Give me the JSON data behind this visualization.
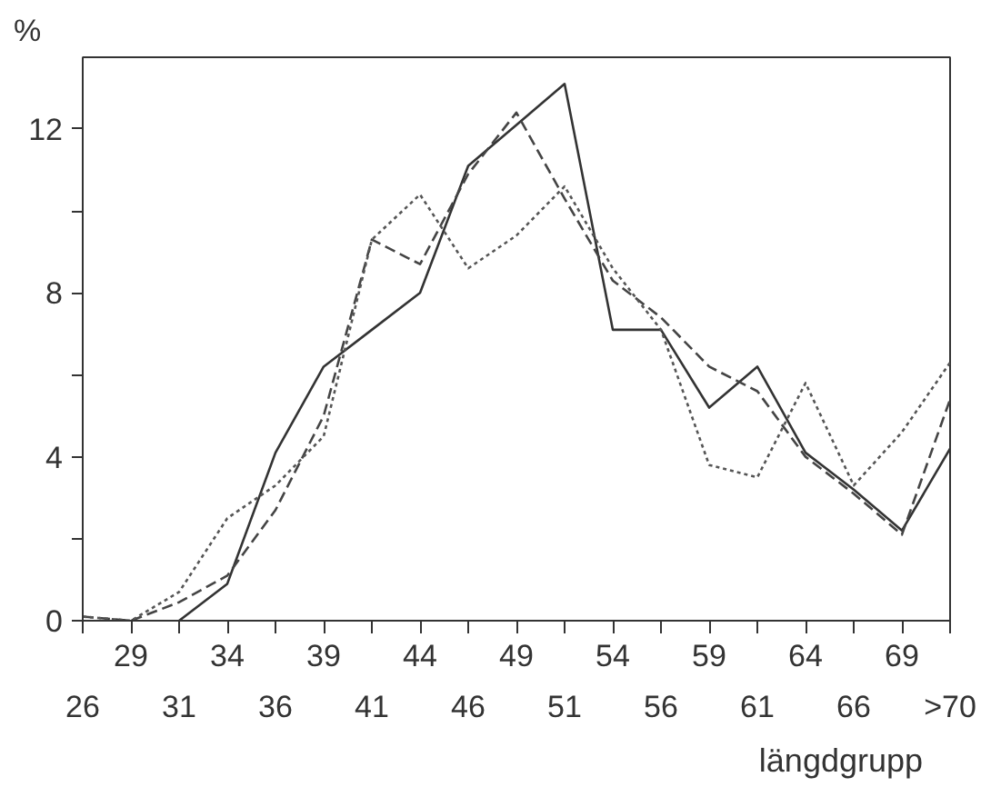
{
  "chart_data": {
    "type": "line",
    "ylabel": "%",
    "xlabel": "längdgrupp",
    "categories": [
      "26",
      "29",
      "31",
      "34",
      "36",
      "39",
      "41",
      "44",
      "46",
      "49",
      "51",
      "54",
      "56",
      "59",
      "61",
      "64",
      "66",
      "69",
      ">70"
    ],
    "ylim": [
      0,
      13.75
    ],
    "yticks": [
      0,
      {
        "value": 2,
        "label": null
      },
      4,
      {
        "value": 6,
        "label": null
      },
      8,
      {
        "value": 10,
        "label": null
      },
      12
    ],
    "grid": false,
    "marker": "none",
    "series": [
      {
        "color": "#333333",
        "line_style": "solid",
        "values": [
          null,
          null,
          0,
          0.9,
          4.1,
          6.2,
          7.1,
          8.0,
          11.1,
          12.1,
          13.1,
          7.1,
          7.1,
          5.2,
          6.2,
          4.1,
          3.2,
          2.2,
          4.2
        ]
      },
      {
        "color": "#444444",
        "line_style": "dashed",
        "values": [
          0.1,
          0,
          0.45,
          1.1,
          2.7,
          5.0,
          9.3,
          8.7,
          10.9,
          12.4,
          10.3,
          8.3,
          7.4,
          6.2,
          5.6,
          4.0,
          3.1,
          2.1,
          5.4
        ]
      },
      {
        "color": "#555555",
        "line_style": "dotted",
        "values": [
          0.1,
          0,
          0.7,
          2.5,
          3.3,
          4.5,
          9.3,
          10.4,
          8.6,
          9.4,
          10.6,
          8.6,
          7.1,
          3.8,
          3.5,
          5.8,
          3.3,
          4.6,
          6.3
        ]
      }
    ]
  }
}
